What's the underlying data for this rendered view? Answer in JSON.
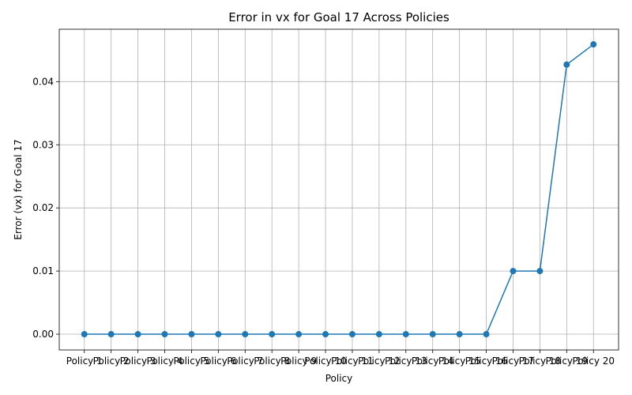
{
  "chart_data": {
    "type": "line",
    "title": "Error in vx for Goal 17 Across Policies",
    "xlabel": "Policy",
    "ylabel": "Error (vx) for Goal 17",
    "categories": [
      "Policy 1",
      "Policy 2",
      "Policy 3",
      "Policy 4",
      "Policy 5",
      "Policy 6",
      "Policy 7",
      "Policy 8",
      "Policy 9",
      "Policy 10",
      "Policy 11",
      "Policy 12",
      "Policy 13",
      "Policy 14",
      "Policy 15",
      "Policy 16",
      "Policy 17",
      "Policy 18",
      "Policy 19",
      "Policy 20"
    ],
    "series": [
      {
        "values": [
          0,
          0,
          0,
          0,
          0,
          0,
          0,
          0,
          0,
          0,
          0,
          0,
          0,
          0,
          0,
          0,
          0.01,
          0.01,
          0.0427,
          0.0459
        ],
        "color": "#1f77b4",
        "marker": "circle"
      }
    ],
    "yticks": [
      "0.00",
      "0.01",
      "0.02",
      "0.03",
      "0.04"
    ],
    "ylim": [
      -0.0025,
      0.0483
    ],
    "grid": true,
    "legend": "none"
  }
}
